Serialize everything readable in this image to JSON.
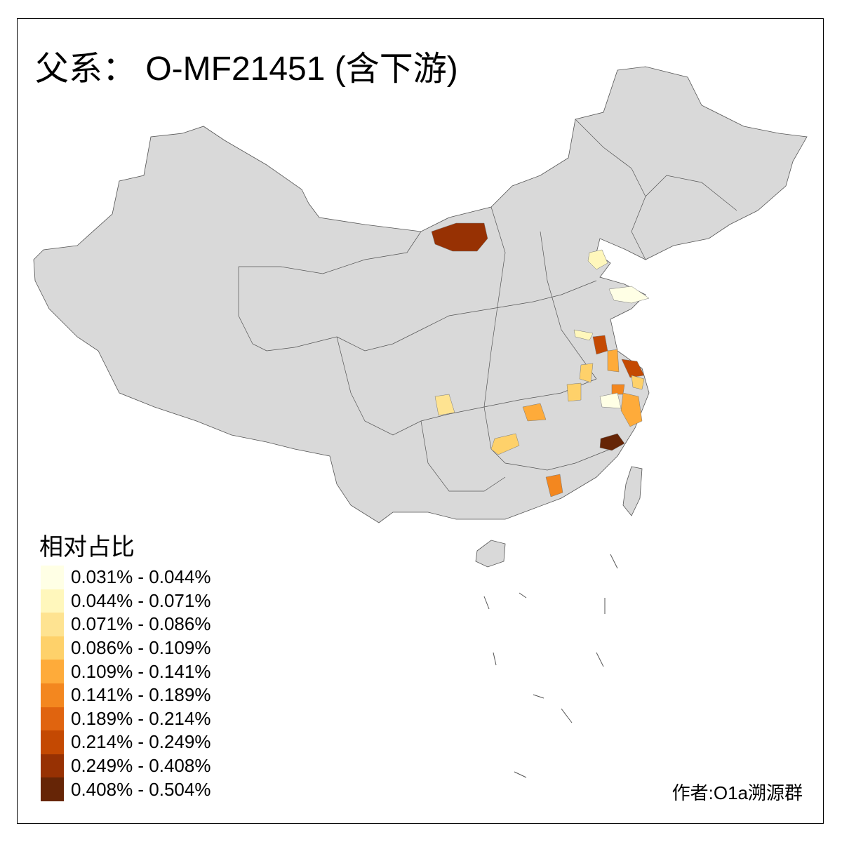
{
  "title": "父系： O-MF21451 (含下游)",
  "legend": {
    "title": "相对占比",
    "items": [
      {
        "label": "0.031% - 0.044%",
        "color": "#ffffe5"
      },
      {
        "label": "0.044% - 0.071%",
        "color": "#fff7bc"
      },
      {
        "label": "0.071% - 0.086%",
        "color": "#fee391"
      },
      {
        "label": "0.086% - 0.109%",
        "color": "#fed16a"
      },
      {
        "label": "0.109% - 0.141%",
        "color": "#feab3a"
      },
      {
        "label": "0.141% - 0.189%",
        "color": "#f3871f"
      },
      {
        "label": "0.189% - 0.214%",
        "color": "#e0640f"
      },
      {
        "label": "0.214% - 0.249%",
        "color": "#c44902"
      },
      {
        "label": "0.249% - 0.408%",
        "color": "#973103"
      },
      {
        "label": "0.408% - 0.504%",
        "color": "#662506"
      }
    ]
  },
  "map": {
    "base_color": "#d9d9d9",
    "border_color": "#555555"
  },
  "credit": "作者:O1a溯源群"
}
